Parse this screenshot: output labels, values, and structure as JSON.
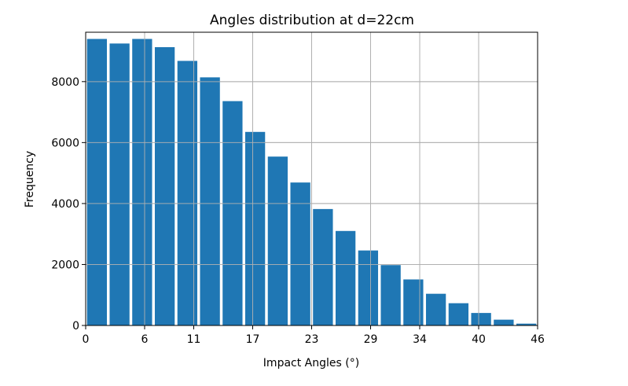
{
  "chart_data": {
    "type": "bar",
    "title": "Angles distribution at d=22cm",
    "xlabel": "Impact Angles (°)",
    "ylabel": "Frequency",
    "bar_color": "#1f77b4",
    "grid": true,
    "xlim": [
      0,
      46
    ],
    "ylim": [
      0,
      9620
    ],
    "xticks": [
      0,
      6,
      11,
      17,
      23,
      29,
      34,
      40,
      46
    ],
    "yticks": [
      0,
      2000,
      4000,
      6000,
      8000
    ],
    "bin_edges": [
      0,
      2.3,
      4.6,
      6.9,
      9.2,
      11.5,
      13.8,
      16.1,
      18.4,
      20.7,
      23.0,
      25.3,
      27.6,
      29.9,
      32.2,
      34.5,
      36.8,
      39.1,
      41.4,
      43.7,
      46.0
    ],
    "values": [
      9400,
      9250,
      9400,
      9130,
      8680,
      8140,
      7360,
      6350,
      5540,
      4690,
      3820,
      3100,
      2460,
      1980,
      1510,
      1040,
      730,
      410,
      190,
      60
    ]
  }
}
